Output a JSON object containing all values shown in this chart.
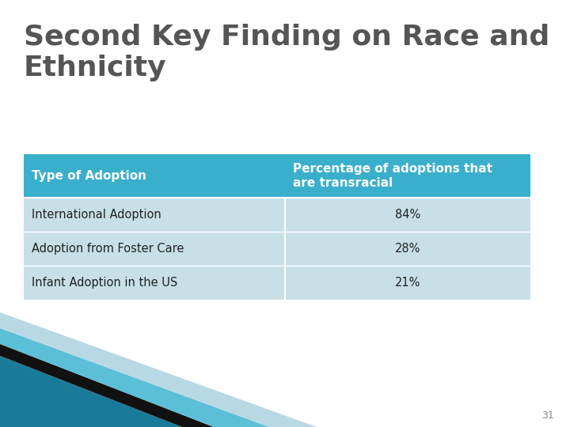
{
  "title_line1": "Second Key Finding on Race and",
  "title_line2": "Ethnicity",
  "title_color": "#555555",
  "title_fontsize": 26,
  "header_bg_color": "#3aafcc",
  "header_text_color": "#ffffff",
  "header_col1": "Type of Adoption",
  "header_col2": "Percentage of adoptions that\nare transracial",
  "row_bg_color": "#c8dfe8",
  "rows": [
    [
      "International Adoption",
      "84%"
    ],
    [
      "Adoption from Foster Care",
      "28%"
    ],
    [
      "Infant Adoption in the US",
      "21%"
    ]
  ],
  "page_number": "31",
  "background_color": "#ffffff",
  "deco_dark_teal": "#1a7a9a",
  "deco_light_teal": "#5bbfd8",
  "deco_very_light": "#b8d8e4",
  "deco_black": "#111111"
}
